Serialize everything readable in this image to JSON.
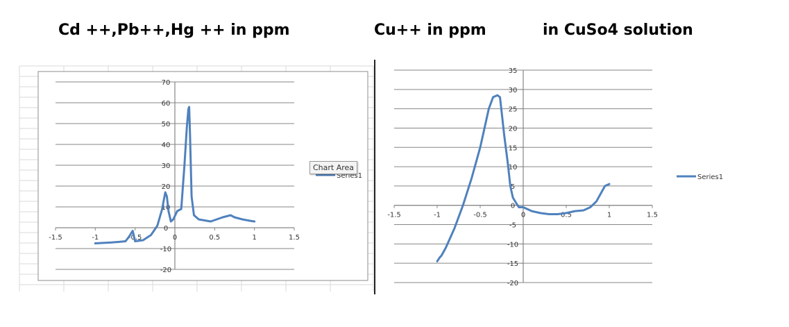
{
  "headings": {
    "left": "Cd ++,Pb++,Hg ++ in ppm",
    "right_a": "Cu++ in ppm",
    "right_b": "in CuSo4 solution"
  },
  "tooltip": "Chart Area",
  "colors": {
    "series": "#4f81bd",
    "grid": "#868686",
    "sheet_grid": "#d9d9d9",
    "border": "#8c8c8c"
  },
  "chart_data": [
    {
      "type": "scatter",
      "title": "",
      "legend": {
        "entries": [
          "Series1"
        ],
        "placement": "right"
      },
      "xlim": [
        -1.5,
        1.5
      ],
      "ylim": [
        -20,
        70
      ],
      "x_ticks": [
        -1.5,
        -1,
        -0.5,
        0,
        0.5,
        1,
        1.5
      ],
      "y_ticks": [
        -20,
        -10,
        0,
        10,
        20,
        30,
        40,
        50,
        60,
        70
      ],
      "x_tick_labels": [
        "-1.5",
        "-1",
        "-0.5",
        "0",
        "0.5",
        "1",
        "1.5"
      ],
      "y_tick_labels": [
        "-20",
        "-10",
        "0",
        "10",
        "20",
        "30",
        "40",
        "50",
        "60",
        "70"
      ],
      "grid": "horizontal",
      "series": [
        {
          "name": "Series1",
          "x": [
            -1,
            -0.9,
            -0.8,
            -0.7,
            -0.62,
            -0.58,
            -0.53,
            -0.5,
            -0.4,
            -0.3,
            -0.22,
            -0.16,
            -0.14,
            -0.12,
            -0.1,
            -0.08,
            -0.05,
            -0.02,
            0.03,
            0.08,
            0.12,
            0.15,
            0.17,
            0.18,
            0.19,
            0.21,
            0.24,
            0.3,
            0.45,
            0.6,
            0.7,
            0.75,
            0.85,
            0.95,
            1
          ],
          "y": [
            -7.5,
            -7.3,
            -7.1,
            -6.8,
            -6.5,
            -4.5,
            -1.5,
            -6.5,
            -6,
            -3.5,
            1,
            9,
            13,
            17,
            15,
            8,
            3,
            4,
            8,
            9,
            30,
            48,
            57,
            58,
            45,
            15,
            6,
            4,
            3,
            5,
            6,
            5,
            4,
            3.3,
            3
          ]
        }
      ]
    },
    {
      "type": "scatter",
      "title": "",
      "legend": {
        "entries": [
          "Series1"
        ],
        "placement": "right"
      },
      "xlim": [
        -1.5,
        1.5
      ],
      "ylim": [
        -20,
        35
      ],
      "x_ticks": [
        -1.5,
        -1,
        -0.5,
        0,
        0.5,
        1,
        1.5
      ],
      "y_ticks": [
        -20,
        -15,
        -10,
        -5,
        0,
        5,
        10,
        15,
        20,
        25,
        30,
        35
      ],
      "x_tick_labels": [
        "-1.5",
        "-1",
        "-0.5",
        "0",
        "0.5",
        "1",
        "1.5"
      ],
      "y_tick_labels": [
        "-20",
        "-15",
        "-10",
        "-5",
        "0",
        "5",
        "10",
        "15",
        "20",
        "25",
        "30",
        "35"
      ],
      "grid": "horizontal",
      "series": [
        {
          "name": "Series1",
          "x": [
            -1,
            -0.97,
            -0.95,
            -0.9,
            -0.8,
            -0.7,
            -0.6,
            -0.5,
            -0.45,
            -0.4,
            -0.35,
            -0.3,
            -0.27,
            -0.25,
            -0.22,
            -0.18,
            -0.15,
            -0.12,
            -0.08,
            -0.05,
            0,
            0.1,
            0.2,
            0.3,
            0.4,
            0.5,
            0.6,
            0.7,
            0.78,
            0.85,
            0.9,
            0.95,
            1
          ],
          "y": [
            -14.5,
            -13.5,
            -13,
            -11,
            -6,
            0,
            7,
            15,
            20,
            25,
            28,
            28.5,
            28,
            24,
            18,
            11,
            5,
            2,
            0.5,
            -0.5,
            -0.5,
            -1.5,
            -2,
            -2.3,
            -2.3,
            -2,
            -1.5,
            -1.3,
            -0.5,
            1,
            3,
            5,
            5.5
          ]
        }
      ]
    }
  ]
}
